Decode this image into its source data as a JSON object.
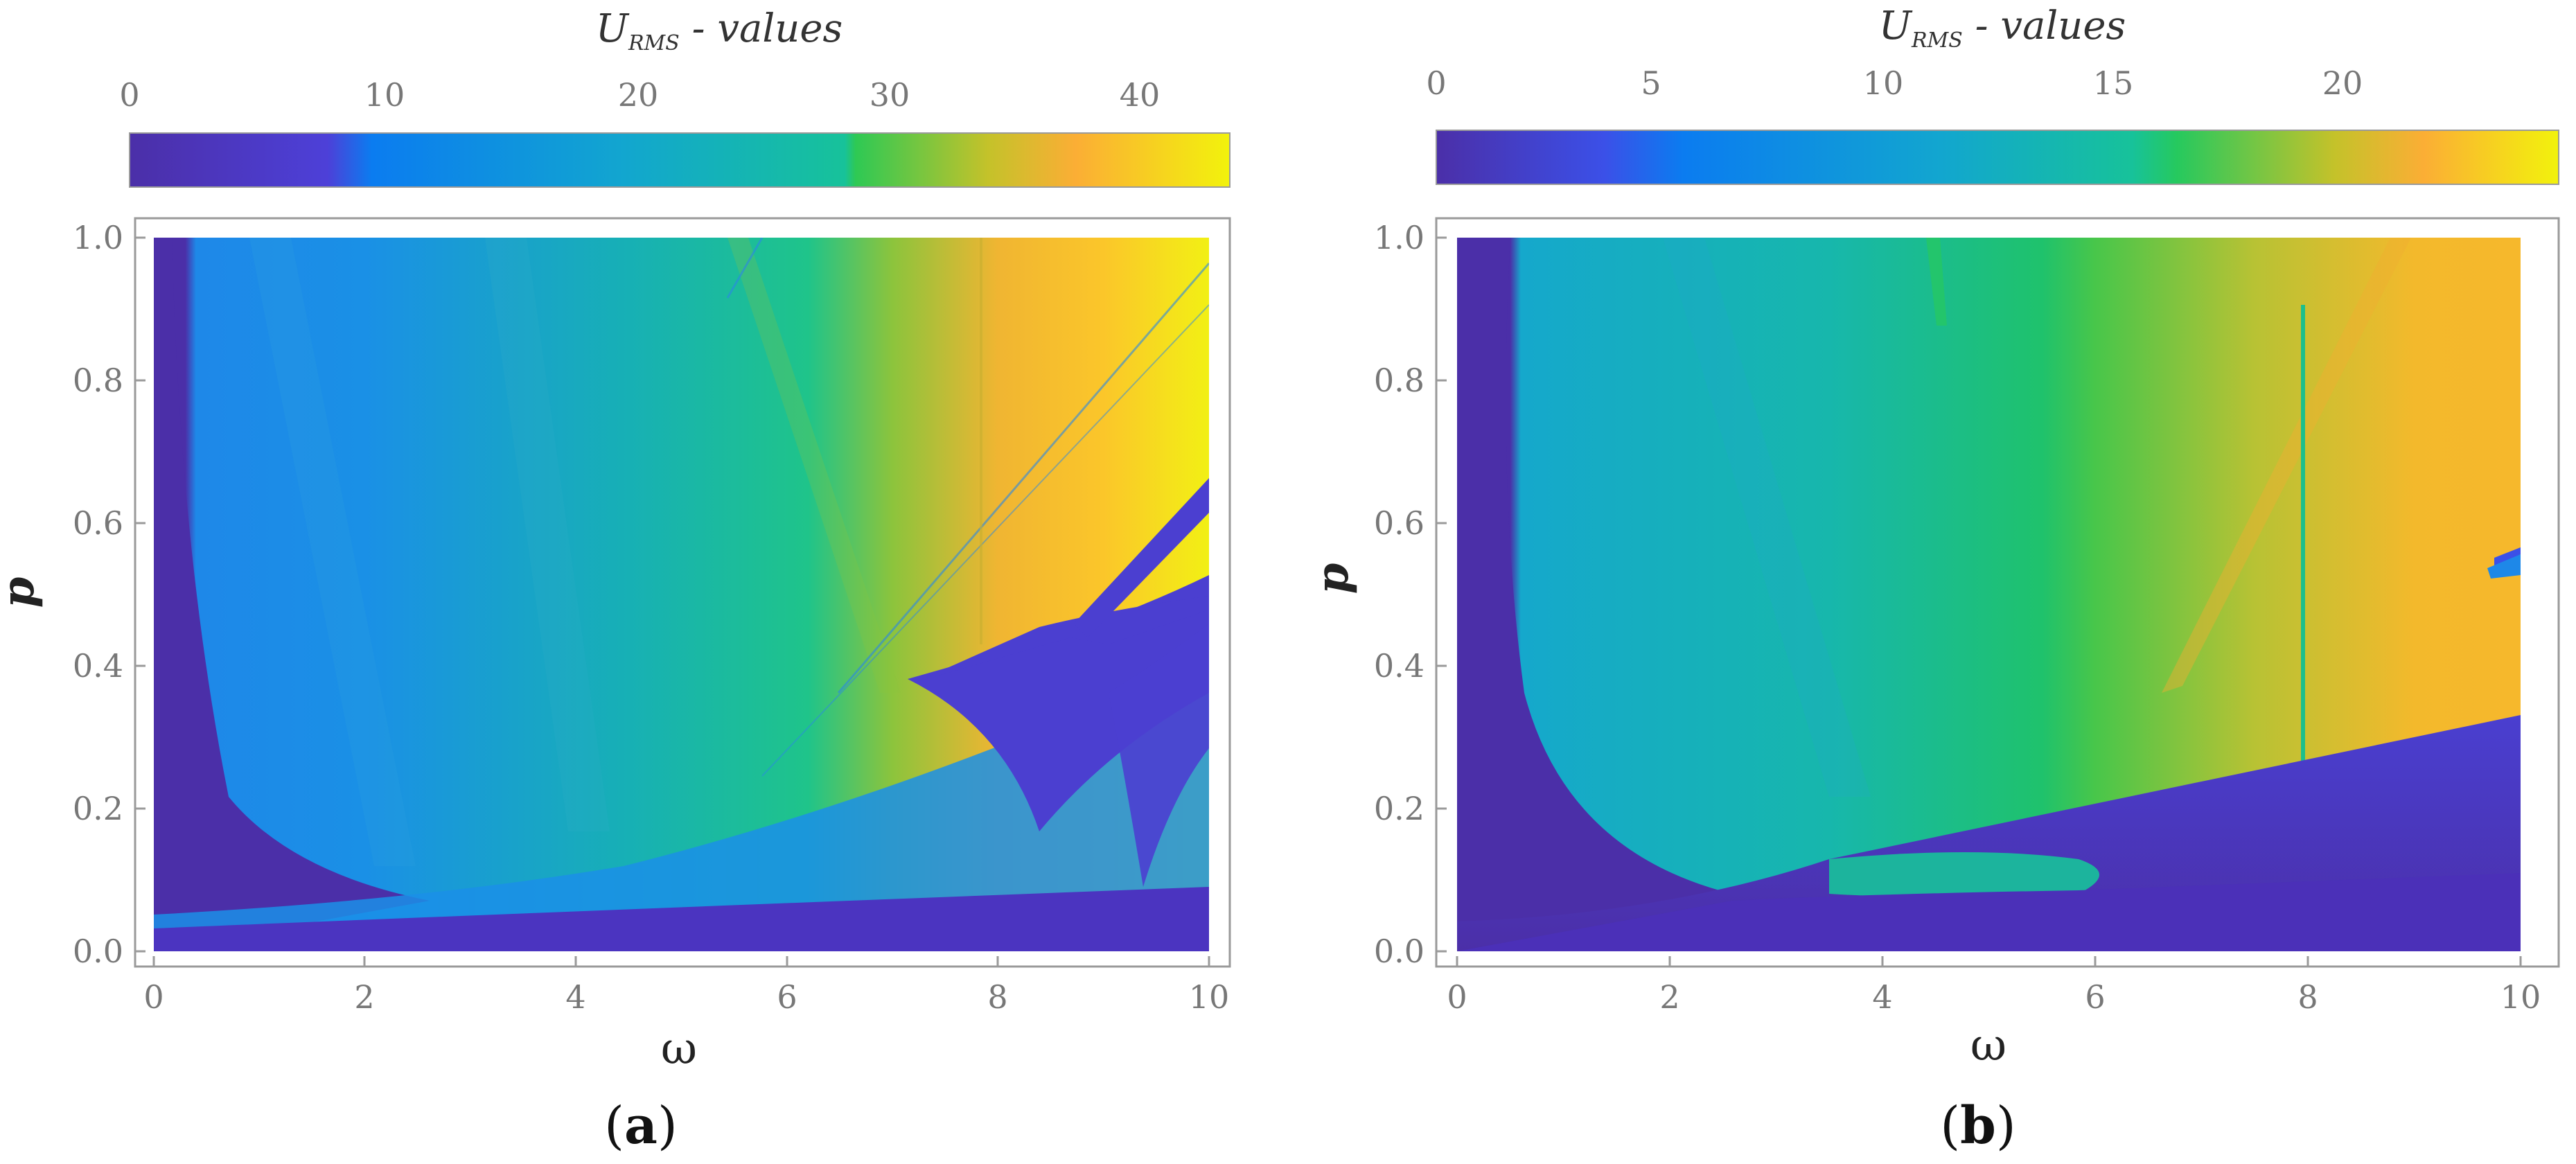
{
  "figure": {
    "panels": [
      {
        "id": "a",
        "label_open": "(",
        "label_letter": "a",
        "label_close": ")",
        "colorbar": {
          "title_main": "U",
          "title_sub": "RMS",
          "title_rest": " - values",
          "ticks": [
            "0",
            "10",
            "20",
            "30",
            "40"
          ],
          "range": [
            0,
            43
          ]
        },
        "xlabel": "ω",
        "ylabel": "p",
        "xticks": [
          "0",
          "2",
          "4",
          "6",
          "8",
          "10"
        ],
        "yticks": [
          "0.0",
          "0.2",
          "0.4",
          "0.6",
          "0.8",
          "1.0"
        ]
      },
      {
        "id": "b",
        "label_open": "(",
        "label_letter": "b",
        "label_close": ")",
        "colorbar": {
          "title_main": "U",
          "title_sub": "RMS",
          "title_rest": " - values",
          "ticks": [
            "0",
            "5",
            "10",
            "15",
            "20"
          ],
          "range": [
            0,
            24
          ]
        },
        "xlabel": "ω",
        "ylabel": "p",
        "xticks": [
          "0",
          "2",
          "4",
          "6",
          "8",
          "10"
        ],
        "yticks": [
          "0.0",
          "0.2",
          "0.4",
          "0.6",
          "0.8",
          "1.0"
        ]
      }
    ],
    "colormap": [
      "#4b2fa8",
      "#3b50e8",
      "#0b7cf0",
      "#12a6cf",
      "#17c29a",
      "#26c95e",
      "#c4c22a",
      "#fbae35",
      "#f2f20c"
    ]
  },
  "chart_data": [
    {
      "type": "heatmap",
      "title": "",
      "xlabel": "ω",
      "ylabel": "p",
      "xlim": [
        0,
        10
      ],
      "ylim": [
        0,
        1
      ],
      "colorbar_label": "U_RMS - values",
      "colorbar_range": [
        0,
        43
      ],
      "colorbar_ticks": [
        0,
        10,
        20,
        30,
        40
      ],
      "grid": false,
      "description_of_regions": [
        {
          "region": "omega < 0.2",
          "value_approx": 3
        },
        {
          "region": "omega 1-4, p > 0.2",
          "value_approx": 15
        },
        {
          "region": "omega 4-6.5, p > 0.25",
          "value_approx": 25
        },
        {
          "region": "omega 7-10, p > 0.4",
          "value_approx": 38
        },
        {
          "region": "p < 0.05",
          "value_approx": 3
        }
      ]
    },
    {
      "type": "heatmap",
      "title": "",
      "xlabel": "ω",
      "ylabel": "p",
      "xlim": [
        0,
        10
      ],
      "ylim": [
        0,
        1
      ],
      "colorbar_label": "U_RMS - values",
      "colorbar_range": [
        0,
        24
      ],
      "colorbar_ticks": [
        0,
        5,
        10,
        15,
        20
      ],
      "grid": false,
      "description_of_regions": [
        {
          "region": "omega < 0.3",
          "value_approx": 2
        },
        {
          "region": "omega 1-4, p > 0.15",
          "value_approx": 12
        },
        {
          "region": "omega 4-6, p > 0.2",
          "value_approx": 15
        },
        {
          "region": "omega 6-10, p > 0.3",
          "value_approx": 19
        },
        {
          "region": "p below line from (3.5,0.13) to (10,0.33)",
          "value_approx": 3
        }
      ]
    }
  ]
}
